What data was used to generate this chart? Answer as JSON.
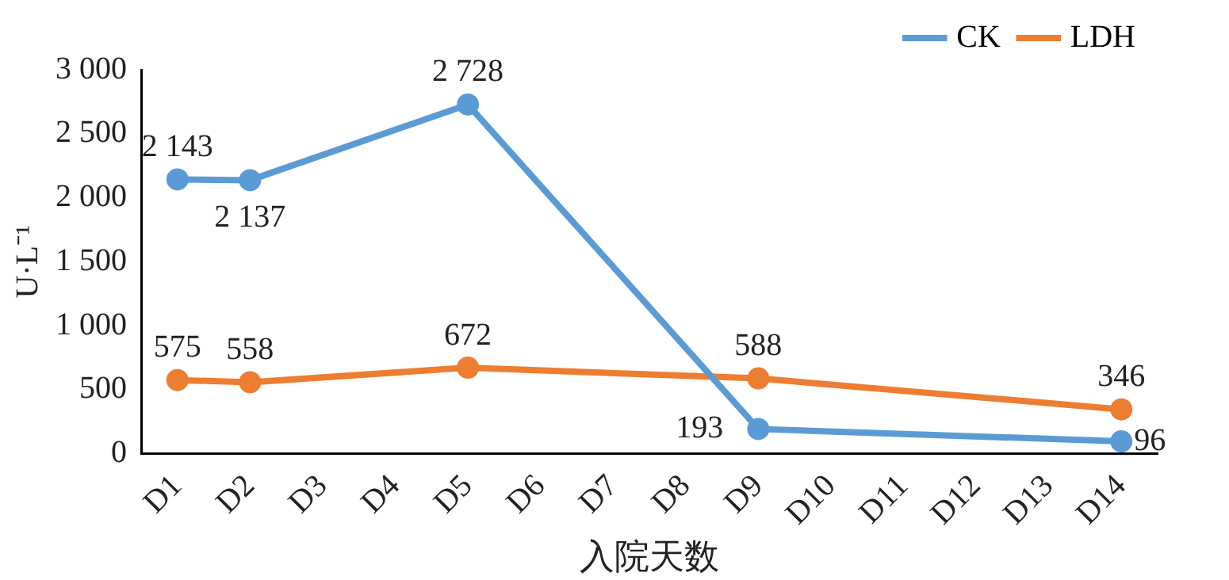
{
  "chart_data": {
    "type": "line",
    "xlabel": "入院天数",
    "ylabel": "U·L⁻¹",
    "categories": [
      "D1",
      "D2",
      "D3",
      "D4",
      "D5",
      "D6",
      "D7",
      "D8",
      "D9",
      "D10",
      "D11",
      "D12",
      "D13",
      "D14"
    ],
    "series": [
      {
        "name": "CK",
        "color": "#5b9bd5",
        "values": [
          2143,
          2137,
          null,
          null,
          2728,
          null,
          null,
          null,
          193,
          null,
          null,
          null,
          null,
          96
        ],
        "value_labels": [
          "2 143",
          "2 137",
          null,
          null,
          "2 728",
          null,
          null,
          null,
          "193",
          null,
          null,
          null,
          null,
          "96"
        ]
      },
      {
        "name": "LDH",
        "color": "#ed7d31",
        "values": [
          575,
          558,
          null,
          null,
          672,
          null,
          null,
          null,
          588,
          null,
          null,
          null,
          null,
          346
        ],
        "value_labels": [
          "575",
          "558",
          null,
          null,
          "672",
          null,
          null,
          null,
          "588",
          null,
          null,
          null,
          null,
          "346"
        ]
      }
    ],
    "ylim": [
      0,
      3000
    ],
    "yticks": [
      {
        "value": 0,
        "label": "0"
      },
      {
        "value": 500,
        "label": "500"
      },
      {
        "value": 1000,
        "label": "1 000"
      },
      {
        "value": 1500,
        "label": "1 500"
      },
      {
        "value": 2000,
        "label": "2 000"
      },
      {
        "value": 2500,
        "label": "2 500"
      },
      {
        "value": 3000,
        "label": "3 000"
      }
    ],
    "grid": false,
    "legend": "top right",
    "marker": "circle",
    "line_style": "solid"
  }
}
